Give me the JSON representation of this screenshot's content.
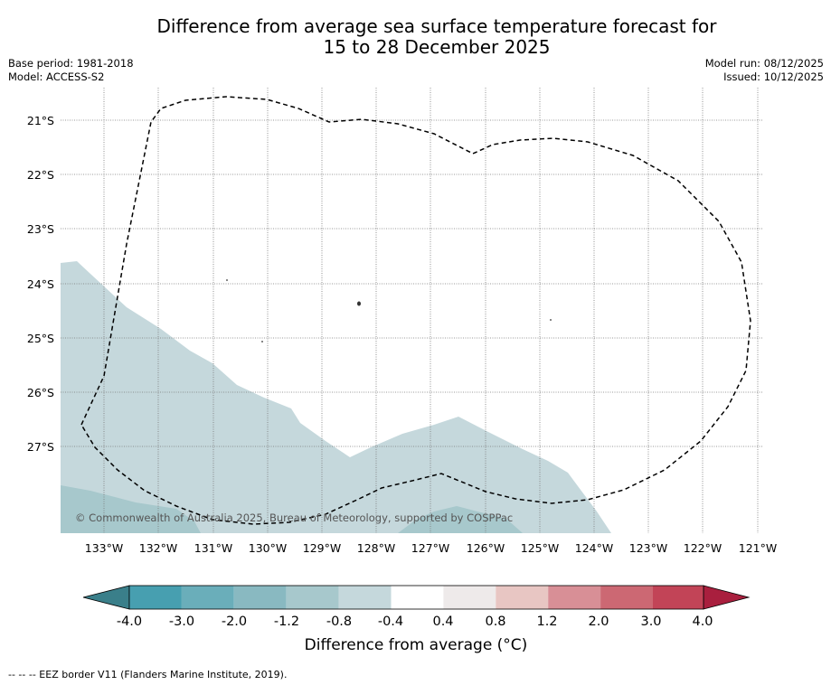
{
  "title": {
    "line1": "Difference from average sea surface temperature forecast for",
    "line2": "15 to 28 December 2025"
  },
  "meta": {
    "base_period": "Base period: 1981-2018",
    "model": "Model: ACCESS-S2",
    "model_run": "Model run: 08/12/2025",
    "issued": "Issued: 10/12/2025"
  },
  "map": {
    "lon_labels": [
      "133°W",
      "132°W",
      "131°W",
      "130°W",
      "129°W",
      "128°W",
      "127°W",
      "126°W",
      "125°W",
      "124°W",
      "123°W",
      "122°W",
      "121°W"
    ],
    "lat_labels": [
      "21°S",
      "22°S",
      "23°S",
      "24°S",
      "25°S",
      "26°S",
      "27°S"
    ],
    "copyright": "© Commonwealth of Australia 2025, Bureau of Meteorology, supported by COSPPac"
  },
  "colorbar": {
    "ticks": [
      "-4.0",
      "-3.0",
      "-2.0",
      "-1.2",
      "-0.8",
      "-0.4",
      "0.4",
      "0.8",
      "1.2",
      "2.0",
      "3.0",
      "4.0"
    ],
    "colors": [
      "#479fb0",
      "#6aaeba",
      "#89b9c1",
      "#a7c8cc",
      "#c5d8dc",
      "#ffffff",
      "#eeeaea",
      "#e8c6c3",
      "#d88f96",
      "#cc6873",
      "#c24457"
    ],
    "under_color": "#3a7f8a",
    "over_color": "#a91f3e",
    "label": "Difference from average (°C)"
  },
  "footer": "--  --  -- EEZ border V11 (Flanders Marine Institute, 2019)."
}
